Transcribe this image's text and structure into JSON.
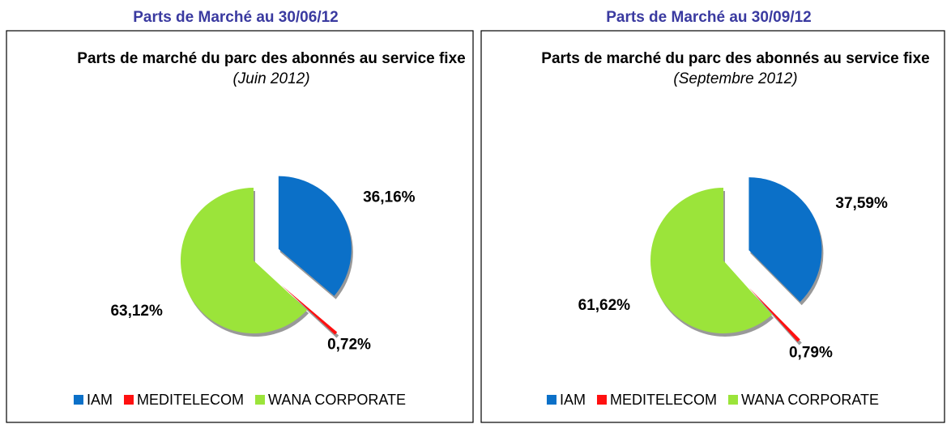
{
  "chart_data": [
    {
      "type": "pie",
      "heading": "Parts de Marché au 30/06/12",
      "title": "Parts de marché du parc des abonnés au service fixe",
      "title_note": "(Juin 2012)",
      "categories": [
        "IAM",
        "MEDITELECOM",
        "WANA CORPORATE"
      ],
      "values": [
        36.16,
        0.72,
        63.12
      ],
      "value_labels": [
        "36,16%",
        "0,72%",
        "63,12%"
      ],
      "colors": [
        "#0b70c8",
        "#ff1010",
        "#9be43a"
      ],
      "legend": "bottom"
    },
    {
      "type": "pie",
      "heading": "Parts de Marché au 30/09/12",
      "title": "Parts de marché du parc des abonnés au service fixe",
      "title_note": "(Septembre 2012)",
      "categories": [
        "IAM",
        "MEDITELECOM",
        "WANA CORPORATE"
      ],
      "values": [
        37.59,
        0.79,
        61.62
      ],
      "value_labels": [
        "37,59%",
        "0,79%",
        "61,62%"
      ],
      "colors": [
        "#0b70c8",
        "#ff1010",
        "#9be43a"
      ],
      "legend": "bottom"
    }
  ]
}
